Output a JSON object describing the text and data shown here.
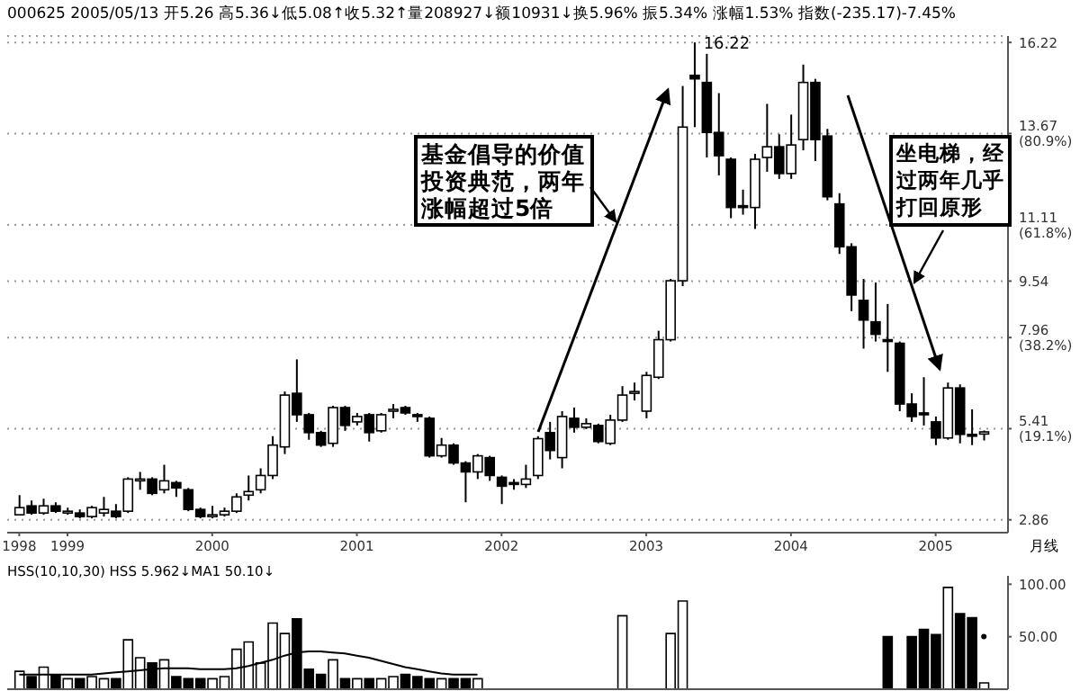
{
  "chart_data": [
    {
      "type": "candlestick",
      "subtitle": "000625 2005/05/13 开5.26 高5.36↓低5.08↑收5.32↑量208927↓额10931↓换5.96% 振5.34% 涨幅1.53% 指数(-235.17)-7.45%",
      "xlabel": "月线",
      "x": [
        "1998-09",
        "1998-10",
        "1998-11",
        "1998-12",
        "1999-01",
        "1999-02",
        "1999-03",
        "1999-04",
        "1999-05",
        "1999-06",
        "1999-07",
        "1999-08",
        "1999-09",
        "1999-10",
        "1999-11",
        "1999-12",
        "2000-01",
        "2000-02",
        "2000-03",
        "2000-04",
        "2000-05",
        "2000-06",
        "2000-07",
        "2000-08",
        "2000-09",
        "2000-10",
        "2000-11",
        "2000-12",
        "2001-01",
        "2001-02",
        "2001-03",
        "2001-04",
        "2001-05",
        "2001-06",
        "2001-07",
        "2001-08",
        "2001-09",
        "2001-10",
        "2001-11",
        "2001-12",
        "2002-01",
        "2002-02",
        "2002-03",
        "2002-04",
        "2002-05",
        "2002-06",
        "2002-07",
        "2002-08",
        "2002-09",
        "2002-10",
        "2002-11",
        "2002-12",
        "2003-01",
        "2003-02",
        "2003-03",
        "2003-04",
        "2003-05",
        "2003-06",
        "2003-07",
        "2003-08",
        "2003-09",
        "2003-10",
        "2003-11",
        "2003-12",
        "2004-01",
        "2004-02",
        "2004-03",
        "2004-04",
        "2004-05",
        "2004-06",
        "2004-07",
        "2004-08",
        "2004-09",
        "2004-10",
        "2004-11",
        "2004-12",
        "2005-01",
        "2005-02",
        "2005-03",
        "2005-04",
        "2005-05"
      ],
      "ohlc": [
        [
          3.0,
          3.55,
          3.0,
          3.2
        ],
        [
          3.25,
          3.4,
          3.0,
          3.05
        ],
        [
          3.05,
          3.45,
          3.0,
          3.25
        ],
        [
          3.25,
          3.35,
          3.05,
          3.1
        ],
        [
          3.1,
          3.2,
          3.0,
          3.1
        ],
        [
          3.05,
          3.15,
          2.9,
          2.95
        ],
        [
          2.95,
          3.25,
          2.9,
          3.2
        ],
        [
          3.05,
          3.5,
          2.95,
          3.15
        ],
        [
          3.1,
          3.3,
          2.9,
          2.95
        ],
        [
          3.1,
          4.05,
          3.05,
          4.0
        ],
        [
          4.0,
          4.2,
          3.7,
          4.0
        ],
        [
          4.0,
          4.05,
          3.55,
          3.6
        ],
        [
          3.7,
          4.4,
          3.6,
          3.95
        ],
        [
          3.9,
          3.95,
          3.5,
          3.75
        ],
        [
          3.7,
          3.75,
          3.1,
          3.15
        ],
        [
          3.15,
          3.2,
          2.9,
          2.95
        ],
        [
          3.0,
          3.25,
          2.9,
          3.0
        ],
        [
          3.0,
          3.2,
          2.95,
          3.1
        ],
        [
          3.1,
          3.6,
          3.05,
          3.5
        ],
        [
          3.55,
          4.1,
          3.4,
          3.65
        ],
        [
          3.7,
          4.3,
          3.6,
          4.1
        ],
        [
          4.1,
          5.2,
          4.0,
          4.95
        ],
        [
          4.9,
          6.45,
          4.7,
          6.35
        ],
        [
          6.4,
          7.35,
          5.6,
          5.8
        ],
        [
          5.8,
          5.85,
          5.1,
          5.3
        ],
        [
          5.3,
          5.35,
          4.9,
          4.95
        ],
        [
          5.0,
          6.05,
          4.9,
          6.0
        ],
        [
          6.0,
          6.05,
          5.35,
          5.5
        ],
        [
          5.6,
          5.85,
          5.5,
          5.75
        ],
        [
          5.8,
          5.85,
          5.05,
          5.3
        ],
        [
          5.35,
          5.85,
          5.3,
          5.8
        ],
        [
          5.95,
          6.1,
          5.7,
          5.95
        ],
        [
          6.0,
          6.05,
          5.8,
          5.85
        ],
        [
          5.8,
          5.85,
          5.6,
          5.75
        ],
        [
          5.7,
          5.75,
          4.6,
          4.65
        ],
        [
          4.65,
          5.15,
          4.6,
          4.95
        ],
        [
          4.95,
          5.0,
          4.4,
          4.45
        ],
        [
          4.45,
          4.5,
          3.35,
          4.2
        ],
        [
          4.2,
          4.7,
          4.0,
          4.65
        ],
        [
          4.6,
          4.65,
          3.95,
          4.1
        ],
        [
          4.05,
          4.1,
          3.3,
          3.8
        ],
        [
          3.9,
          4.0,
          3.7,
          3.85
        ],
        [
          3.85,
          4.4,
          3.75,
          4.0
        ],
        [
          4.1,
          5.2,
          4.0,
          5.13
        ],
        [
          5.3,
          5.6,
          4.55,
          4.8
        ],
        [
          4.6,
          5.9,
          4.3,
          5.75
        ],
        [
          5.7,
          6.0,
          5.3,
          5.45
        ],
        [
          5.45,
          5.7,
          5.4,
          5.55
        ],
        [
          5.5,
          5.55,
          5.0,
          5.05
        ],
        [
          5.0,
          5.8,
          4.95,
          5.65
        ],
        [
          5.65,
          6.6,
          5.6,
          6.35
        ],
        [
          6.4,
          6.7,
          6.2,
          6.45
        ],
        [
          5.9,
          7.0,
          5.7,
          6.9
        ],
        [
          6.85,
          8.15,
          6.8,
          7.9
        ],
        [
          7.9,
          9.6,
          7.85,
          9.55
        ],
        [
          9.55,
          15.0,
          9.4,
          13.85
        ],
        [
          15.3,
          16.22,
          13.85,
          15.2
        ],
        [
          15.1,
          15.9,
          13.0,
          13.7
        ],
        [
          13.7,
          14.8,
          12.5,
          13.05
        ],
        [
          12.95,
          13.0,
          11.3,
          11.6
        ],
        [
          11.65,
          12.1,
          11.4,
          11.6
        ],
        [
          11.6,
          13.1,
          11.0,
          12.95
        ],
        [
          13.0,
          14.5,
          12.6,
          13.3
        ],
        [
          13.3,
          13.65,
          12.4,
          12.55
        ],
        [
          12.55,
          14.2,
          12.4,
          13.35
        ],
        [
          13.5,
          15.6,
          13.2,
          15.1
        ],
        [
          15.1,
          15.2,
          12.9,
          13.5
        ],
        [
          13.6,
          13.8,
          11.8,
          11.9
        ],
        [
          11.7,
          12.0,
          10.3,
          10.5
        ],
        [
          10.5,
          10.6,
          8.7,
          9.15
        ],
        [
          9.0,
          9.6,
          7.65,
          8.45
        ],
        [
          8.4,
          9.5,
          7.85,
          8.05
        ],
        [
          7.9,
          8.9,
          7.0,
          7.85
        ],
        [
          7.8,
          7.85,
          5.9,
          6.1
        ],
        [
          6.1,
          6.4,
          5.6,
          5.75
        ],
        [
          5.85,
          6.85,
          5.5,
          5.8
        ],
        [
          5.6,
          5.75,
          4.95,
          5.15
        ],
        [
          5.15,
          6.7,
          5.1,
          6.55
        ],
        [
          6.55,
          6.65,
          5.0,
          5.25
        ],
        [
          5.25,
          5.95,
          4.95,
          5.2
        ],
        [
          5.26,
          5.36,
          5.08,
          5.32
        ]
      ],
      "xlim": [
        "1998-08",
        "2005-07"
      ],
      "xticks": [
        {
          "value": "1998-09",
          "label": "1998"
        },
        {
          "value": "1999-01",
          "label": "1999"
        },
        {
          "value": "2000-01",
          "label": "2000"
        },
        {
          "value": "2001-01",
          "label": "2001"
        },
        {
          "value": "2002-01",
          "label": "2002"
        },
        {
          "value": "2003-01",
          "label": "2003"
        },
        {
          "value": "2004-01",
          "label": "2004"
        },
        {
          "value": "2005-01",
          "label": "2005"
        }
      ],
      "ylim": [
        2.5,
        16.4
      ],
      "yticks": [
        2.86,
        {
          "value": 5.41,
          "label": "5.41\n(19.1%)"
        },
        {
          "value": 7.96,
          "label": "7.96\n(38.2%)"
        },
        9.54,
        {
          "value": 11.11,
          "label": "11.11\n(61.8%)"
        },
        {
          "value": 13.67,
          "label": "13.67\n(80.9%)"
        },
        16.22
      ],
      "grid": "y",
      "annotations": [
        {
          "text": "16.22",
          "x": "2003-05",
          "y": 16.22
        },
        "基金倡导的价值投资典范，两年涨幅超过5倍",
        "坐电梯，经过两年几乎打回原形"
      ]
    },
    {
      "type": "bar",
      "title": "HSS(10,10,30) HSS 5.962↓MA1 50.10↓",
      "tick_labels": "y",
      "x": [
        "1998-09",
        "1998-10",
        "1998-11",
        "1998-12",
        "1999-01",
        "1999-02",
        "1999-03",
        "1999-04",
        "1999-05",
        "1999-06",
        "1999-07",
        "1999-08",
        "1999-09",
        "1999-10",
        "1999-11",
        "1999-12",
        "2000-01",
        "2000-02",
        "2000-03",
        "2000-04",
        "2000-05",
        "2000-06",
        "2000-07",
        "2000-08",
        "2000-09",
        "2000-10",
        "2000-11",
        "2000-12",
        "2001-01",
        "2001-02",
        "2001-03",
        "2001-04",
        "2001-05",
        "2001-06",
        "2001-07",
        "2001-08",
        "2001-09",
        "2001-10",
        "2001-11",
        "2001-12",
        "2002-01",
        "2002-02",
        "2002-03",
        "2002-04",
        "2002-05",
        "2002-06",
        "2002-07",
        "2002-08",
        "2002-09",
        "2002-10",
        "2002-11",
        "2002-12",
        "2003-01",
        "2003-02",
        "2003-03",
        "2003-04",
        "2003-05",
        "2003-06",
        "2003-07",
        "2003-08",
        "2003-09",
        "2003-10",
        "2003-11",
        "2003-12",
        "2004-01",
        "2004-02",
        "2004-03",
        "2004-04",
        "2004-05",
        "2004-06",
        "2004-07",
        "2004-08",
        "2004-09",
        "2004-10",
        "2004-11",
        "2004-12",
        "2005-01",
        "2005-02",
        "2005-03",
        "2005-04",
        "2005-05"
      ],
      "xlim": [
        "1998-08",
        "2005-07"
      ],
      "ylim": [
        0,
        108
      ],
      "yticks": [
        {
          "value": 50,
          "label": "50.00"
        },
        {
          "value": 100,
          "label": "100.00"
        }
      ],
      "series": [
        {
          "type": "bar",
          "colors": [
            "#ffffff",
            "#000000",
            "#ffffff",
            "#000000",
            "#ffffff",
            "#000000",
            "#ffffff",
            "#ffffff",
            "#000000",
            "#ffffff",
            "#ffffff",
            "#000000",
            "#ffffff",
            "#000000",
            "#000000",
            "#000000",
            "#ffffff",
            "#ffffff",
            "#ffffff",
            "#ffffff",
            "#ffffff",
            "#ffffff",
            "#ffffff",
            "#000000",
            "#000000",
            "#000000",
            "#ffffff",
            "#000000",
            "#ffffff",
            "#000000",
            "#ffffff",
            "#ffffff",
            "#000000",
            "#000000",
            "#000000",
            "#ffffff",
            "#000000",
            "#000000",
            "#ffffff",
            "#000000",
            "#000000",
            "#000000",
            "#ffffff",
            "#ffffff",
            "#000000",
            "#ffffff",
            "#000000",
            "#ffffff",
            "#000000",
            "#ffffff",
            "#ffffff",
            "#ffffff",
            "#ffffff",
            "#ffffff",
            "#ffffff",
            "#ffffff",
            "#000000",
            "#000000",
            "#000000",
            "#000000",
            "#000000",
            "#ffffff",
            "#ffffff",
            "#000000",
            "#ffffff",
            "#ffffff",
            "#000000",
            "#000000",
            "#000000",
            "#000000",
            "#000000",
            "#000000",
            "#000000",
            "#000000",
            "#000000",
            "#000000",
            "#000000",
            "#ffffff",
            "#000000",
            "#000000",
            "#ffffff"
          ],
          "values": [
            17,
            12,
            21,
            13,
            10,
            10,
            12,
            10,
            10,
            47,
            30,
            25,
            28,
            12,
            10,
            10,
            10,
            12,
            38,
            45,
            25,
            63,
            53,
            67,
            19,
            14,
            28,
            10,
            10,
            10,
            10,
            12,
            14,
            12,
            10,
            10,
            10,
            10,
            10,
            null,
            null,
            null,
            null,
            null,
            null,
            null,
            null,
            null,
            null,
            null,
            70,
            null,
            null,
            null,
            53,
            84,
            null,
            null,
            null,
            null,
            null,
            null,
            null,
            null,
            null,
            null,
            null,
            null,
            null,
            null,
            null,
            null,
            50,
            null,
            50,
            57,
            52,
            97,
            72,
            68,
            5.962
          ]
        },
        {
          "type": "line",
          "color": "#000000",
          "values": [
            14,
            14,
            14,
            14,
            14,
            14,
            14,
            15,
            16,
            17,
            18,
            19,
            20,
            20,
            20,
            19,
            19,
            19,
            20,
            22,
            25,
            28,
            32,
            35,
            36,
            36,
            35,
            34,
            32,
            30,
            27,
            24,
            21,
            19,
            17,
            15,
            14,
            14,
            14,
            null,
            null,
            null,
            null,
            null,
            null,
            null,
            null,
            null,
            null,
            null,
            null,
            null,
            null,
            null,
            null,
            null,
            null,
            null,
            null,
            null,
            null,
            null,
            null,
            null,
            null,
            null,
            null,
            null,
            null,
            null,
            null,
            null,
            null,
            null,
            null,
            null,
            null,
            null,
            null,
            null,
            50.1
          ]
        }
      ]
    }
  ]
}
